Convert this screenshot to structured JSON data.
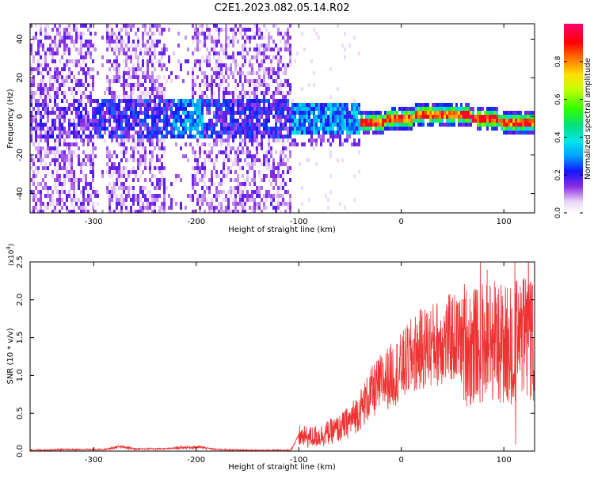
{
  "title": "C2E1.2023.082.05.14.R02",
  "chart_data": [
    {
      "type": "heatmap",
      "xlabel": "Height of straight line (km)",
      "ylabel": "Frequency (Hz)",
      "xlim": [
        -362,
        130
      ],
      "ylim": [
        -50,
        48
      ],
      "xticks": [
        -300,
        -200,
        -100,
        0,
        100
      ],
      "yticks": [
        -40,
        -20,
        0,
        20,
        40
      ],
      "colorbar": {
        "label": "Normalized spectral amplitude",
        "range": [
          0.0,
          1.0
        ],
        "ticks": [
          "0.0",
          "0.2",
          "0.4",
          "0.6",
          "0.8"
        ]
      },
      "regions": [
        {
          "x": [
            -362,
            -300
          ],
          "amplitude": "low (purple/violet scatter) with band near 0 Hz"
        },
        {
          "x": [
            -300,
            -190
          ],
          "amplitude": "moderate band near 0 Hz, peak ~0.3 near -210 km"
        },
        {
          "x": [
            -190,
            -107
          ],
          "amplitude": "low scatter across full band"
        },
        {
          "x": [
            -107,
            -40
          ],
          "amplitude": "band -10..10 Hz, values 0.2-0.4"
        },
        {
          "x": [
            -40,
            130
          ],
          "amplitude": "narrow band around 0 Hz, peak ~0.9-1.0"
        }
      ]
    },
    {
      "type": "line",
      "xlabel": "Height of straight line (km)",
      "ylabel": "SNR (10 * v/v)",
      "scale_label": "(x10",
      "scale_exp": "4",
      "scale_close": ")",
      "xlim": [
        -362,
        130
      ],
      "ylim": [
        0.0,
        2.5
      ],
      "xticks": [
        -300,
        -200,
        -100,
        0,
        100
      ],
      "yticks": [
        "0.0",
        "0.5",
        "1.0",
        "1.5",
        "2.0",
        "2.5"
      ],
      "series": [
        {
          "color": "#ee3333",
          "x": [
            -362,
            -330,
            -290,
            -275,
            -260,
            -230,
            -210,
            -195,
            -180,
            -150,
            -120,
            -108,
            -100,
            -90,
            -80,
            -70,
            -60,
            -50,
            -40,
            -30,
            -20,
            -10,
            0,
            10,
            20,
            30,
            40,
            50,
            60,
            70,
            80,
            90,
            100,
            110,
            120,
            130
          ],
          "y": [
            0.01,
            0.02,
            0.02,
            0.06,
            0.03,
            0.03,
            0.05,
            0.05,
            0.02,
            0.01,
            0.01,
            0.01,
            0.2,
            0.18,
            0.2,
            0.25,
            0.3,
            0.4,
            0.55,
            0.75,
            0.9,
            1.0,
            1.1,
            1.25,
            1.35,
            1.4,
            1.45,
            1.5,
            1.45,
            1.35,
            1.45,
            1.5,
            1.4,
            1.45,
            1.5,
            1.4
          ]
        }
      ]
    }
  ]
}
